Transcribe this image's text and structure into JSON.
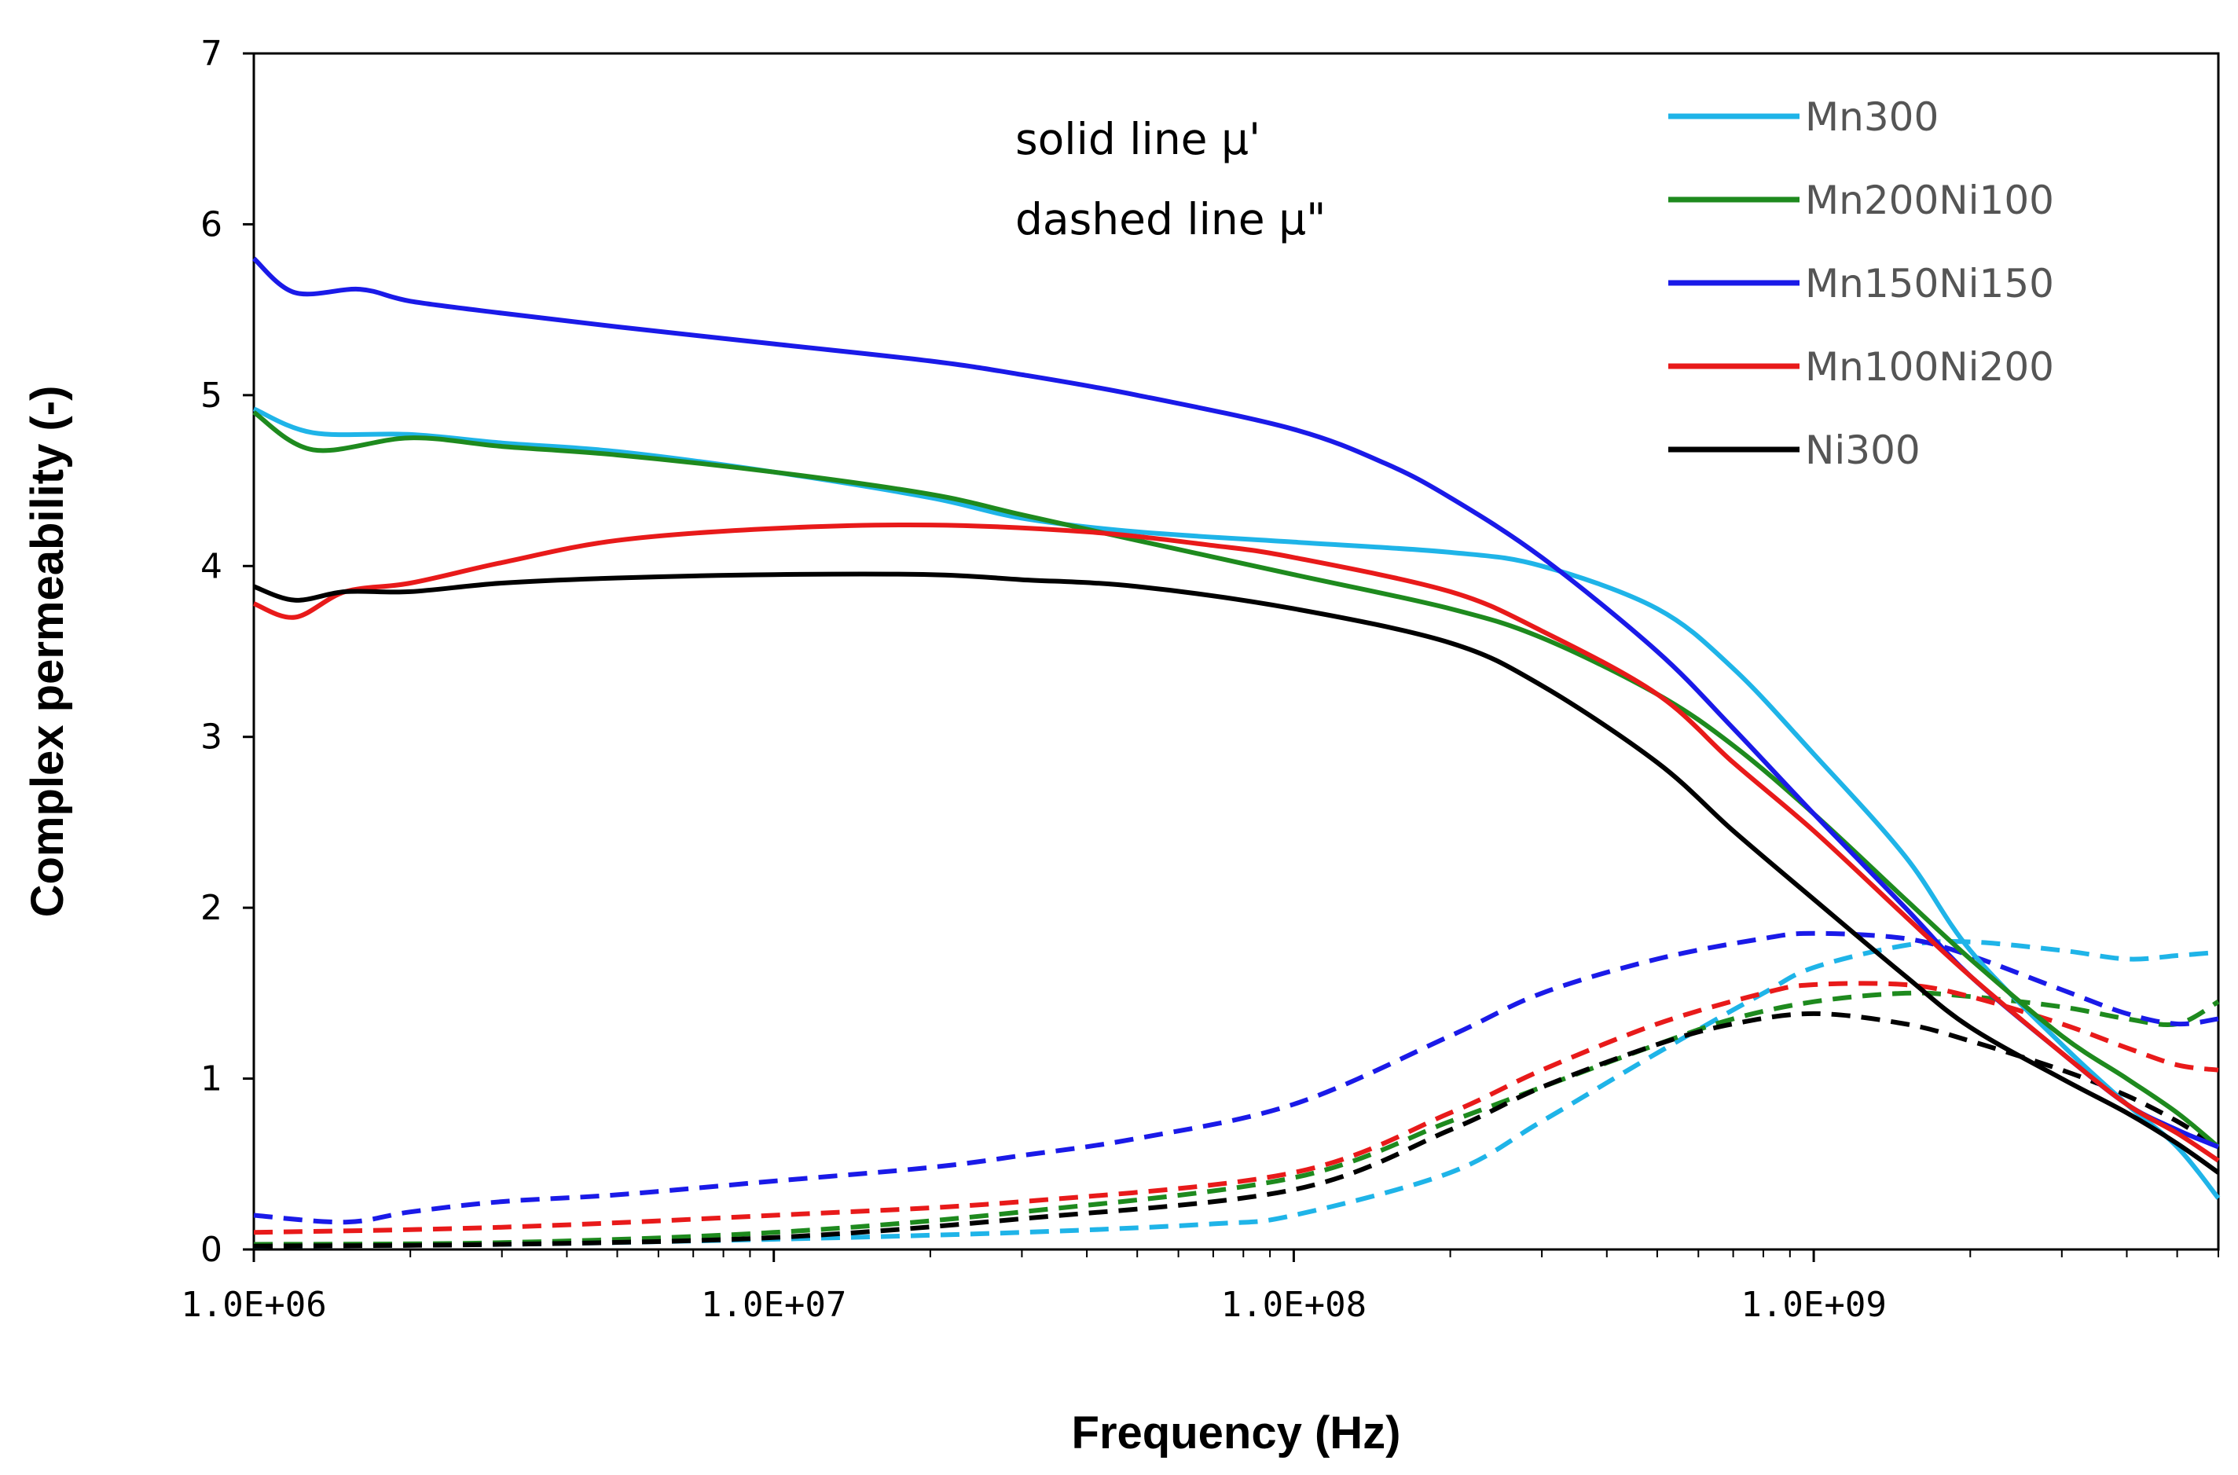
{
  "chart_data": {
    "type": "line",
    "xscale": "log",
    "xlabel": "Frequency (Hz)",
    "ylabel": "Complex permeability (-)",
    "xlim": [
      1000000,
      6000000000
    ],
    "ylim": [
      0,
      7
    ],
    "xticks": [
      1000000,
      10000000,
      100000000,
      1000000000
    ],
    "xtick_labels": [
      "1.0E+06",
      "1.0E+07",
      "1.0E+08",
      "1.0E+09"
    ],
    "yticks": [
      0,
      1,
      2,
      3,
      4,
      5,
      6,
      7
    ],
    "ytick_labels": [
      "0",
      "1",
      "2",
      "3",
      "4",
      "5",
      "6",
      "7"
    ],
    "annotations": [
      "solid line μ'",
      "dashed line μ\""
    ],
    "legend_position": "top-right",
    "series": [
      {
        "name": "Mn300",
        "color": "#1fb4e8",
        "mu_real": [
          [
            1000000,
            4.92
          ],
          [
            1300000,
            4.78
          ],
          [
            2000000,
            4.77
          ],
          [
            3000000,
            4.72
          ],
          [
            5000000,
            4.67
          ],
          [
            10000000,
            4.55
          ],
          [
            20000000,
            4.4
          ],
          [
            30000000,
            4.28
          ],
          [
            50000000,
            4.2
          ],
          [
            100000000,
            4.14
          ],
          [
            200000000,
            4.08
          ],
          [
            300000000,
            4.0
          ],
          [
            500000000,
            3.75
          ],
          [
            700000000,
            3.4
          ],
          [
            1000000000,
            2.9
          ],
          [
            1500000000,
            2.3
          ],
          [
            2000000000,
            1.75
          ],
          [
            3000000000,
            1.2
          ],
          [
            4000000000,
            0.85
          ],
          [
            5000000000,
            0.6
          ],
          [
            6000000000,
            0.3
          ]
        ],
        "mu_imag": [
          [
            1000000,
            0.02
          ],
          [
            3000000,
            0.03
          ],
          [
            10000000,
            0.06
          ],
          [
            30000000,
            0.1
          ],
          [
            70000000,
            0.15
          ],
          [
            100000000,
            0.2
          ],
          [
            200000000,
            0.45
          ],
          [
            300000000,
            0.75
          ],
          [
            500000000,
            1.15
          ],
          [
            800000000,
            1.5
          ],
          [
            1000000000,
            1.65
          ],
          [
            1500000000,
            1.78
          ],
          [
            2000000000,
            1.8
          ],
          [
            3000000000,
            1.75
          ],
          [
            4000000000,
            1.7
          ],
          [
            5000000000,
            1.72
          ],
          [
            6000000000,
            1.74
          ]
        ]
      },
      {
        "name": "Mn200Ni100",
        "color": "#1e8a1e",
        "mu_real": [
          [
            1000000,
            4.9
          ],
          [
            1300000,
            4.68
          ],
          [
            2000000,
            4.75
          ],
          [
            3000000,
            4.7
          ],
          [
            5000000,
            4.65
          ],
          [
            10000000,
            4.55
          ],
          [
            20000000,
            4.42
          ],
          [
            30000000,
            4.3
          ],
          [
            50000000,
            4.15
          ],
          [
            100000000,
            3.95
          ],
          [
            200000000,
            3.75
          ],
          [
            300000000,
            3.58
          ],
          [
            500000000,
            3.25
          ],
          [
            700000000,
            2.95
          ],
          [
            1000000000,
            2.55
          ],
          [
            1500000000,
            2.05
          ],
          [
            2000000000,
            1.7
          ],
          [
            3000000000,
            1.25
          ],
          [
            4000000000,
            1.0
          ],
          [
            5000000000,
            0.8
          ],
          [
            6000000000,
            0.6
          ]
        ],
        "mu_imag": [
          [
            1000000,
            0.03
          ],
          [
            3000000,
            0.04
          ],
          [
            10000000,
            0.1
          ],
          [
            30000000,
            0.22
          ],
          [
            100000000,
            0.42
          ],
          [
            200000000,
            0.75
          ],
          [
            300000000,
            0.95
          ],
          [
            500000000,
            1.2
          ],
          [
            700000000,
            1.35
          ],
          [
            1000000000,
            1.45
          ],
          [
            1500000000,
            1.5
          ],
          [
            2000000000,
            1.48
          ],
          [
            3000000000,
            1.42
          ],
          [
            4000000000,
            1.35
          ],
          [
            5000000000,
            1.32
          ],
          [
            6000000000,
            1.45
          ]
        ]
      },
      {
        "name": "Mn150Ni150",
        "color": "#1a1ae8",
        "mu_real": [
          [
            1000000,
            5.8
          ],
          [
            1200000,
            5.6
          ],
          [
            1600000,
            5.62
          ],
          [
            2000000,
            5.55
          ],
          [
            3000000,
            5.48
          ],
          [
            5000000,
            5.4
          ],
          [
            10000000,
            5.3
          ],
          [
            20000000,
            5.2
          ],
          [
            30000000,
            5.12
          ],
          [
            50000000,
            5.0
          ],
          [
            100000000,
            4.8
          ],
          [
            150000000,
            4.6
          ],
          [
            200000000,
            4.4
          ],
          [
            300000000,
            4.05
          ],
          [
            500000000,
            3.5
          ],
          [
            700000000,
            3.05
          ],
          [
            1000000000,
            2.55
          ],
          [
            1500000000,
            2.0
          ],
          [
            2000000000,
            1.6
          ],
          [
            3000000000,
            1.15
          ],
          [
            4000000000,
            0.85
          ],
          [
            5000000000,
            0.7
          ],
          [
            6000000000,
            0.6
          ]
        ],
        "mu_imag": [
          [
            1000000,
            0.2
          ],
          [
            1500000,
            0.16
          ],
          [
            2000000,
            0.22
          ],
          [
            3000000,
            0.28
          ],
          [
            5000000,
            0.32
          ],
          [
            10000000,
            0.4
          ],
          [
            20000000,
            0.48
          ],
          [
            30000000,
            0.55
          ],
          [
            50000000,
            0.65
          ],
          [
            100000000,
            0.85
          ],
          [
            200000000,
            1.25
          ],
          [
            300000000,
            1.5
          ],
          [
            500000000,
            1.7
          ],
          [
            800000000,
            1.82
          ],
          [
            1000000000,
            1.85
          ],
          [
            1500000000,
            1.82
          ],
          [
            2000000000,
            1.72
          ],
          [
            3000000000,
            1.52
          ],
          [
            4000000000,
            1.38
          ],
          [
            5000000000,
            1.32
          ],
          [
            6000000000,
            1.35
          ]
        ]
      },
      {
        "name": "Mn100Ni200",
        "color": "#e81a1a",
        "mu_real": [
          [
            1000000,
            3.78
          ],
          [
            1200000,
            3.7
          ],
          [
            1500000,
            3.85
          ],
          [
            2000000,
            3.9
          ],
          [
            3000000,
            4.02
          ],
          [
            5000000,
            4.15
          ],
          [
            10000000,
            4.22
          ],
          [
            20000000,
            4.24
          ],
          [
            40000000,
            4.2
          ],
          [
            70000000,
            4.12
          ],
          [
            100000000,
            4.05
          ],
          [
            200000000,
            3.85
          ],
          [
            300000000,
            3.62
          ],
          [
            500000000,
            3.25
          ],
          [
            700000000,
            2.85
          ],
          [
            1000000000,
            2.45
          ],
          [
            1500000000,
            1.95
          ],
          [
            2000000000,
            1.6
          ],
          [
            3000000000,
            1.15
          ],
          [
            4000000000,
            0.85
          ],
          [
            5000000000,
            0.68
          ],
          [
            6000000000,
            0.52
          ]
        ],
        "mu_imag": [
          [
            1000000,
            0.1
          ],
          [
            3000000,
            0.13
          ],
          [
            10000000,
            0.2
          ],
          [
            30000000,
            0.28
          ],
          [
            100000000,
            0.45
          ],
          [
            200000000,
            0.8
          ],
          [
            300000000,
            1.05
          ],
          [
            500000000,
            1.32
          ],
          [
            800000000,
            1.5
          ],
          [
            1000000000,
            1.55
          ],
          [
            1500000000,
            1.55
          ],
          [
            2000000000,
            1.48
          ],
          [
            3000000000,
            1.32
          ],
          [
            4000000000,
            1.18
          ],
          [
            5000000000,
            1.08
          ],
          [
            6000000000,
            1.05
          ]
        ]
      },
      {
        "name": "Ni300",
        "color": "#000000",
        "mu_real": [
          [
            1000000,
            3.88
          ],
          [
            1200000,
            3.8
          ],
          [
            1500000,
            3.85
          ],
          [
            2000000,
            3.85
          ],
          [
            3000000,
            3.9
          ],
          [
            5000000,
            3.93
          ],
          [
            10000000,
            3.95
          ],
          [
            20000000,
            3.95
          ],
          [
            30000000,
            3.92
          ],
          [
            50000000,
            3.88
          ],
          [
            100000000,
            3.75
          ],
          [
            200000000,
            3.55
          ],
          [
            300000000,
            3.3
          ],
          [
            500000000,
            2.85
          ],
          [
            700000000,
            2.45
          ],
          [
            1000000000,
            2.05
          ],
          [
            1500000000,
            1.6
          ],
          [
            2000000000,
            1.3
          ],
          [
            3000000000,
            1.0
          ],
          [
            4000000000,
            0.8
          ],
          [
            5000000000,
            0.62
          ],
          [
            6000000000,
            0.45
          ]
        ],
        "mu_imag": [
          [
            1000000,
            0.02
          ],
          [
            3000000,
            0.03
          ],
          [
            10000000,
            0.07
          ],
          [
            30000000,
            0.18
          ],
          [
            100000000,
            0.35
          ],
          [
            200000000,
            0.7
          ],
          [
            300000000,
            0.95
          ],
          [
            500000000,
            1.2
          ],
          [
            700000000,
            1.32
          ],
          [
            1000000000,
            1.38
          ],
          [
            1500000000,
            1.32
          ],
          [
            2000000000,
            1.22
          ],
          [
            3000000000,
            1.05
          ],
          [
            4000000000,
            0.9
          ],
          [
            5000000000,
            0.75
          ],
          [
            6000000000,
            0.6
          ]
        ]
      }
    ]
  }
}
